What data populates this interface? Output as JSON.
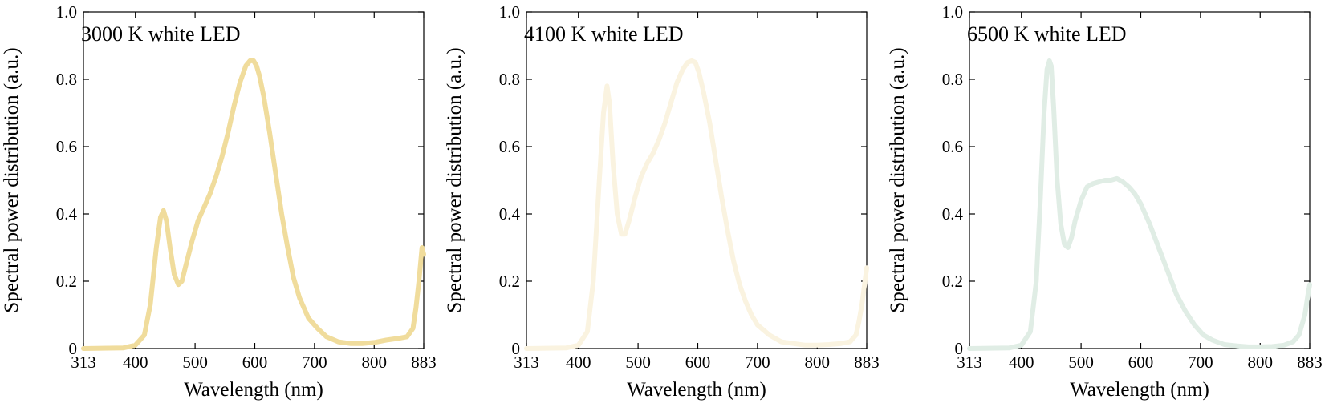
{
  "chart_data": [
    {
      "type": "line",
      "title": "3000 K white LED",
      "xlabel": "Wavelength (nm)",
      "ylabel": "Spectral power distribution (a.u.)",
      "xlim": [
        313,
        883
      ],
      "ylim": [
        0,
        1.0
      ],
      "xticks": [
        313,
        400,
        500,
        600,
        700,
        800,
        883
      ],
      "yticks": [
        0,
        0.2,
        0.4,
        0.6,
        0.8,
        1.0
      ],
      "ytick_labels": [
        "0",
        "0.2",
        "0.4",
        "0.6",
        "0.8",
        "1.0"
      ],
      "color": "#f0dc9c",
      "series": [
        {
          "x": [
            313,
            380,
            400,
            415,
            425,
            435,
            442,
            447,
            452,
            458,
            465,
            472,
            478,
            485,
            495,
            505,
            515,
            525,
            535,
            545,
            555,
            565,
            575,
            585,
            592,
            598,
            603,
            608,
            615,
            625,
            635,
            645,
            655,
            665,
            675,
            690,
            705,
            720,
            740,
            760,
            780,
            800,
            820,
            840,
            855,
            865,
            870,
            875,
            878,
            880,
            883
          ],
          "y": [
            0,
            0.002,
            0.01,
            0.04,
            0.13,
            0.3,
            0.39,
            0.41,
            0.38,
            0.3,
            0.22,
            0.19,
            0.2,
            0.25,
            0.32,
            0.38,
            0.42,
            0.46,
            0.51,
            0.57,
            0.64,
            0.72,
            0.79,
            0.84,
            0.855,
            0.855,
            0.84,
            0.81,
            0.75,
            0.64,
            0.52,
            0.4,
            0.3,
            0.21,
            0.15,
            0.09,
            0.06,
            0.035,
            0.02,
            0.015,
            0.015,
            0.018,
            0.025,
            0.03,
            0.035,
            0.06,
            0.12,
            0.2,
            0.26,
            0.3,
            0.28
          ]
        }
      ]
    },
    {
      "type": "line",
      "title": "4100 K white LED",
      "xlabel": "Wavelength (nm)",
      "ylabel": "Spectral power distribution (a.u.)",
      "xlim": [
        313,
        883
      ],
      "ylim": [
        0,
        1.0
      ],
      "xticks": [
        313,
        400,
        500,
        600,
        700,
        800,
        883
      ],
      "yticks": [
        0,
        0.2,
        0.4,
        0.6,
        0.8,
        1.0
      ],
      "ytick_labels": [
        "0",
        "0.2",
        "0.4",
        "0.6",
        "0.8",
        "1.0"
      ],
      "color": "#faf3e0",
      "series": [
        {
          "x": [
            313,
            380,
            400,
            415,
            425,
            435,
            442,
            448,
            452,
            458,
            465,
            472,
            478,
            485,
            495,
            505,
            515,
            525,
            535,
            545,
            555,
            565,
            575,
            583,
            590,
            596,
            602,
            610,
            620,
            630,
            640,
            650,
            660,
            670,
            680,
            690,
            700,
            720,
            740,
            760,
            780,
            800,
            820,
            840,
            855,
            865,
            870,
            875,
            880,
            883
          ],
          "y": [
            0,
            0.002,
            0.01,
            0.05,
            0.2,
            0.5,
            0.7,
            0.78,
            0.73,
            0.55,
            0.4,
            0.34,
            0.34,
            0.38,
            0.45,
            0.51,
            0.55,
            0.58,
            0.62,
            0.67,
            0.73,
            0.79,
            0.83,
            0.85,
            0.855,
            0.85,
            0.82,
            0.76,
            0.67,
            0.56,
            0.45,
            0.35,
            0.26,
            0.19,
            0.14,
            0.1,
            0.07,
            0.04,
            0.02,
            0.015,
            0.01,
            0.01,
            0.012,
            0.015,
            0.02,
            0.04,
            0.08,
            0.13,
            0.2,
            0.24
          ]
        }
      ]
    },
    {
      "type": "line",
      "title": "6500 K white LED",
      "xlabel": "Wavelength (nm)",
      "ylabel": "Spectral power distribution (a.u.)",
      "xlim": [
        313,
        883
      ],
      "ylim": [
        0,
        1.0
      ],
      "xticks": [
        313,
        400,
        500,
        600,
        700,
        800,
        883
      ],
      "yticks": [
        0,
        0.2,
        0.4,
        0.6,
        0.8,
        1.0
      ],
      "ytick_labels": [
        "0",
        "0.2",
        "0.4",
        "0.6",
        "0.8",
        "1.0"
      ],
      "color": "#e0ede5",
      "series": [
        {
          "x": [
            313,
            380,
            400,
            415,
            425,
            432,
            438,
            443,
            447,
            450,
            454,
            460,
            466,
            472,
            478,
            484,
            490,
            500,
            510,
            520,
            530,
            540,
            550,
            560,
            570,
            580,
            590,
            600,
            615,
            630,
            645,
            660,
            675,
            690,
            705,
            720,
            740,
            760,
            780,
            800,
            820,
            840,
            855,
            865,
            870,
            875,
            880,
            883
          ],
          "y": [
            0,
            0.002,
            0.01,
            0.05,
            0.2,
            0.45,
            0.7,
            0.83,
            0.855,
            0.84,
            0.72,
            0.5,
            0.37,
            0.31,
            0.3,
            0.33,
            0.38,
            0.44,
            0.48,
            0.49,
            0.495,
            0.5,
            0.5,
            0.505,
            0.495,
            0.48,
            0.46,
            0.43,
            0.37,
            0.3,
            0.23,
            0.16,
            0.11,
            0.07,
            0.04,
            0.025,
            0.012,
            0.008,
            0.005,
            0.005,
            0.006,
            0.01,
            0.02,
            0.04,
            0.07,
            0.1,
            0.16,
            0.19
          ]
        }
      ]
    }
  ]
}
